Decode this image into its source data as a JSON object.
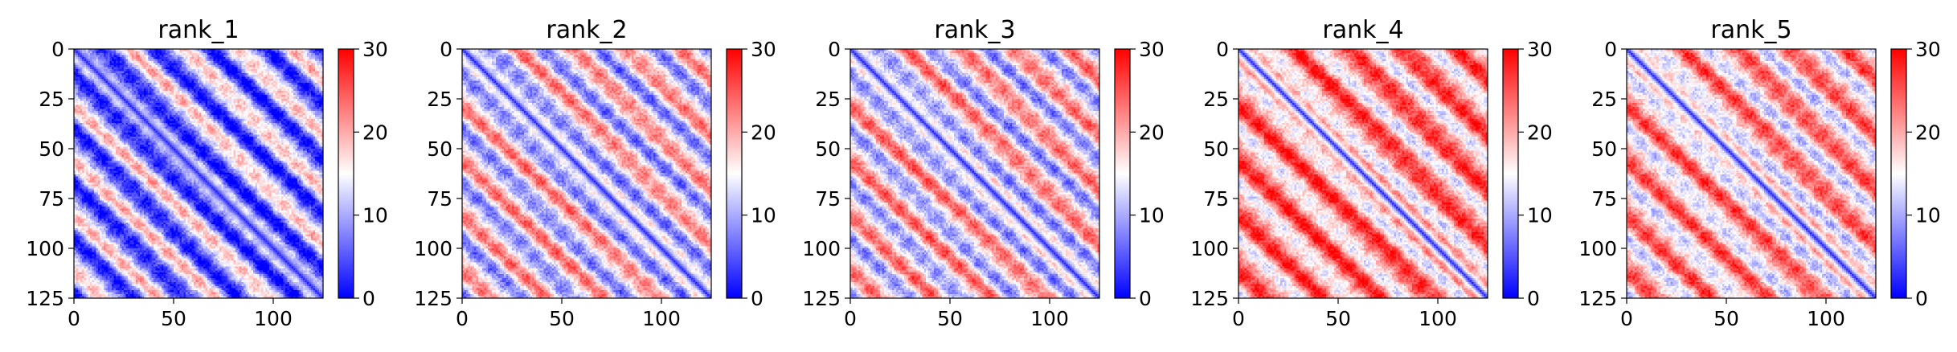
{
  "chart_data": {
    "type": "heatmap",
    "colormap": "bwr",
    "colormap_colors": {
      "low": "#0000ff",
      "mid": "#ffffff",
      "high": "#ff0000"
    },
    "vmin": 0,
    "vmax": 30,
    "matrix_size": 125,
    "x_ticks": [
      0,
      50,
      100
    ],
    "y_ticks": [
      0,
      25,
      50,
      75,
      100,
      125
    ],
    "colorbar_ticks": [
      0,
      10,
      20,
      30
    ],
    "panels": [
      {
        "title": "rank_1",
        "period": 27.5,
        "diagonal_value": 2,
        "near_value": 6,
        "far_mean": 10,
        "far_amplitude": 9
      },
      {
        "title": "rank_2",
        "period": 27.5,
        "diagonal_value": 2,
        "near_value": 6,
        "far_mean": 15,
        "far_amplitude": 8
      },
      {
        "title": "rank_3",
        "period": 27.5,
        "diagonal_value": 2,
        "near_value": 6,
        "far_mean": 16,
        "far_amplitude": 8
      },
      {
        "title": "rank_4",
        "period": 27.5,
        "diagonal_value": 2,
        "near_value": 7,
        "far_mean": 21,
        "far_amplitude": 7
      },
      {
        "title": "rank_5",
        "period": 27.5,
        "diagonal_value": 2,
        "near_value": 7,
        "far_mean": 19,
        "far_amplitude": 7
      }
    ]
  }
}
